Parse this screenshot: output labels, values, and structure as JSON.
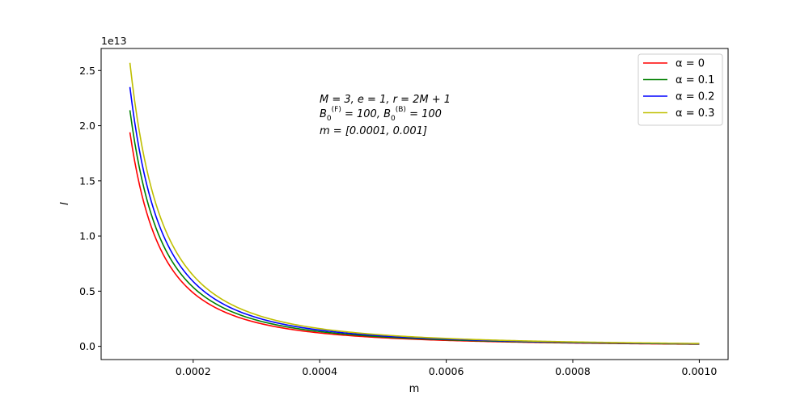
{
  "chart_data": {
    "type": "line",
    "xlabel": "m",
    "ylabel": "I",
    "offset_text": "1e13",
    "xlim": [
      5.45e-05,
      0.0010455
    ],
    "ylim": [
      -0.12,
      2.7
    ],
    "xticks": [
      0.0002,
      0.0004,
      0.0006,
      0.0008,
      0.001
    ],
    "xtick_labels": [
      "0.0002",
      "0.0004",
      "0.0006",
      "0.0008",
      "0.0010"
    ],
    "yticks": [
      0.0,
      0.5,
      1.0,
      1.5,
      2.0,
      2.5
    ],
    "ytick_labels": [
      "0.0",
      "0.5",
      "1.0",
      "1.5",
      "2.0",
      "2.5"
    ],
    "x_range": [
      0.0001,
      0.001
    ],
    "curve_model": "I = value_at_x_min * (x_min / m)^2",
    "series": [
      {
        "name": "α = 0",
        "color": "#ff0000",
        "value_at_x_min": 1.94
      },
      {
        "name": "α = 0.1",
        "color": "#008000",
        "value_at_x_min": 2.14
      },
      {
        "name": "α = 0.2",
        "color": "#0000ff",
        "value_at_x_min": 2.35
      },
      {
        "name": "α = 0.3",
        "color": "#bfbf00",
        "value_at_x_min": 2.57
      }
    ],
    "legend_position": "top-right",
    "grid": false,
    "annotation_lines": [
      "M = 3, e = 1, r = 2M + 1",
      "B0(F) = 100, B0(B) = 100",
      "m = [0.0001, 0.001]"
    ]
  }
}
